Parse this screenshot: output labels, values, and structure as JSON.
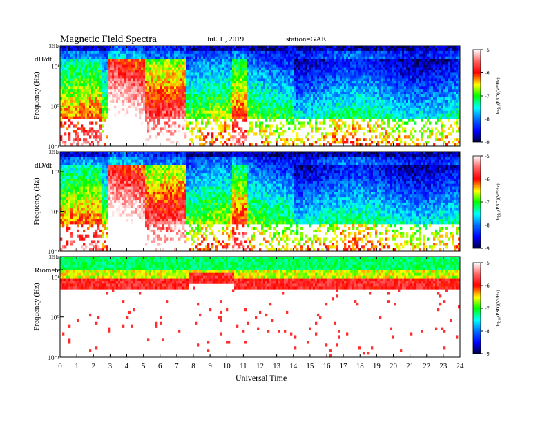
{
  "header": {
    "title": "Magnetic  Field  Spectra",
    "date": "Jul.  1  , 2019",
    "station": "station=GAK"
  },
  "chart_data": [
    {
      "type": "heatmap",
      "panel_label": "dH/dt",
      "ylabel": "Frequency  (Hz)",
      "ytick_labels": [
        "32Hz",
        "10¹",
        "10⁰",
        "10⁻¹"
      ],
      "yticks_hz": [
        32,
        10,
        1,
        0.1
      ],
      "ylim_hz": [
        0.1,
        32
      ],
      "yscale": "log",
      "xlim_hours": [
        0,
        24
      ],
      "colorbar": {
        "label": "log₁₀(PSD)(V²/Hz)",
        "ticks": [
          -5,
          -6,
          -7,
          -8,
          -9
        ],
        "range": [
          -9,
          -5
        ]
      }
    },
    {
      "type": "heatmap",
      "panel_label": "dD/dt",
      "ylabel": "Frequency  (Hz)",
      "ytick_labels": [
        "32Hz",
        "10¹",
        "10⁰",
        "10⁻¹"
      ],
      "yticks_hz": [
        32,
        10,
        1,
        0.1
      ],
      "ylim_hz": [
        0.1,
        32
      ],
      "yscale": "log",
      "xlim_hours": [
        0,
        24
      ],
      "colorbar": {
        "label": "log₁₀(PSD)(V²/Hz)",
        "ticks": [
          -5,
          -6,
          -7,
          -8,
          -9
        ],
        "range": [
          -9,
          -5
        ]
      }
    },
    {
      "type": "heatmap",
      "panel_label": "Riometer",
      "ylabel": "Frequency  (Hz)",
      "ytick_labels": [
        "32Hz",
        "10¹",
        "10⁰",
        "10⁻¹"
      ],
      "yticks_hz": [
        32,
        10,
        1,
        0.1
      ],
      "ylim_hz": [
        0.1,
        32
      ],
      "yscale": "log",
      "xlim_hours": [
        0,
        24
      ],
      "xlabel": "Universal  Time",
      "xticks": [
        "0",
        "1",
        "2",
        "3",
        "4",
        "5",
        "6",
        "7",
        "8",
        "9",
        "10",
        "11",
        "12",
        "13",
        "14",
        "15",
        "16",
        "17",
        "18",
        "19",
        "20",
        "21",
        "22",
        "23",
        "24"
      ],
      "colorbar": {
        "label": "log₁₀(PSD)(V²/Hz)",
        "ticks": [
          -5,
          -6,
          -7,
          -8,
          -9
        ],
        "range": [
          -9,
          -5
        ]
      }
    }
  ]
}
